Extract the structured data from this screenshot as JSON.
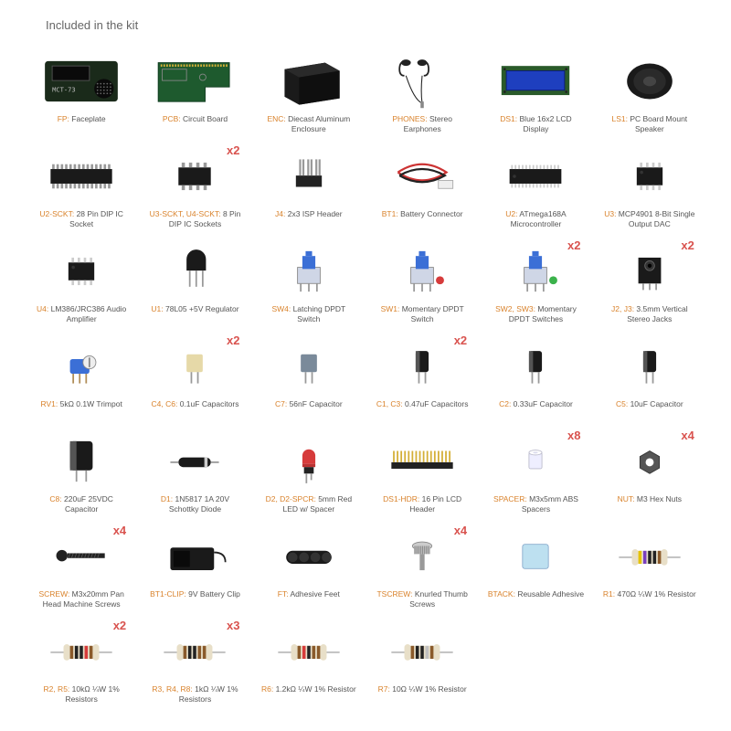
{
  "title": "Included in the kit",
  "colors": {
    "ref": "#d9822b",
    "qty": "#d9534f",
    "bg": "#ffffff",
    "text": "#555"
  },
  "items": [
    {
      "ref": "FP:",
      "desc": "Faceplate",
      "icon": "faceplate"
    },
    {
      "ref": "PCB:",
      "desc": "Circuit Board",
      "icon": "pcb"
    },
    {
      "ref": "ENC:",
      "desc": "Diecast Aluminum Enclosure",
      "icon": "enclosure"
    },
    {
      "ref": "PHONES:",
      "desc": "Stereo Earphones",
      "icon": "earphones"
    },
    {
      "ref": "DS1:",
      "desc": "Blue 16x2 LCD Display",
      "icon": "lcd"
    },
    {
      "ref": "LS1:",
      "desc": "PC Board Mount Speaker",
      "icon": "speaker"
    },
    {
      "ref": "U2-SCKT:",
      "desc": "28 Pin DIP IC Socket",
      "icon": "dip28"
    },
    {
      "ref": "U3-SCKT, U4-SCKT:",
      "desc": "8 Pin DIP IC Sockets",
      "icon": "dip8",
      "qty": "x2"
    },
    {
      "ref": "J4:",
      "desc": "2x3 ISP Header",
      "icon": "isp"
    },
    {
      "ref": "BT1:",
      "desc": "Battery Connector",
      "icon": "battconn"
    },
    {
      "ref": "U2:",
      "desc": "ATmega168A Microcontroller",
      "icon": "chip28"
    },
    {
      "ref": "U3:",
      "desc": "MCP4901 8-Bit Single Output DAC",
      "icon": "chip8"
    },
    {
      "ref": "U4:",
      "desc": "LM386/JRC386 Audio Amplifier",
      "icon": "chip8"
    },
    {
      "ref": "U1:",
      "desc": "78L05 +5V Regulator",
      "icon": "to92"
    },
    {
      "ref": "SW4:",
      "desc": "Latching DPDT Switch",
      "icon": "switch",
      "accent": "#3b6fd6"
    },
    {
      "ref": "SW1:",
      "desc": "Momentary DPDT Switch",
      "icon": "switch",
      "accent": "#3b6fd6",
      "accent2": "#d63b3b"
    },
    {
      "ref": "SW2, SW3:",
      "desc": "Momentary DPDT Switches",
      "icon": "switch",
      "accent": "#3b6fd6",
      "accent2": "#3bb24b",
      "qty": "x2"
    },
    {
      "ref": "J2, J3:",
      "desc": "3.5mm Vertical Stereo Jacks",
      "icon": "jack",
      "qty": "x2"
    },
    {
      "ref": "RV1:",
      "desc": "5kΩ 0.1W Trimpot",
      "icon": "trimpot"
    },
    {
      "ref": "C4, C6:",
      "desc": "0.1uF Capacitors",
      "icon": "boxcap",
      "accent": "#e6d9a8",
      "qty": "x2"
    },
    {
      "ref": "C7:",
      "desc": "56nF Capacitor",
      "icon": "boxcap",
      "accent": "#7a8a9a"
    },
    {
      "ref": "C1, C3:",
      "desc": "0.47uF Capacitors",
      "icon": "ecap",
      "qty": "x2"
    },
    {
      "ref": "C2:",
      "desc": "0.33uF Capacitor",
      "icon": "ecap"
    },
    {
      "ref": "C5:",
      "desc": "10uF Capacitor",
      "icon": "ecap"
    },
    {
      "ref": "C8:",
      "desc": "220uF 25VDC Capacitor",
      "icon": "ecapbig"
    },
    {
      "ref": "D1:",
      "desc": "1N5817 1A 20V Schottky Diode",
      "icon": "diode"
    },
    {
      "ref": "D2, D2-SPCR:",
      "desc": "5mm Red LED w/ Spacer",
      "icon": "led"
    },
    {
      "ref": "DS1-HDR:",
      "desc": "16 Pin LCD Header",
      "icon": "header16"
    },
    {
      "ref": "SPACER:",
      "desc": "M3x5mm ABS Spacers",
      "icon": "spacer",
      "qty": "x8"
    },
    {
      "ref": "NUT:",
      "desc": "M3 Hex Nuts",
      "icon": "nut",
      "qty": "x4"
    },
    {
      "ref": "SCREW:",
      "desc": "M3x20mm Pan Head Machine Screws",
      "icon": "screw",
      "qty": "x4"
    },
    {
      "ref": "BT1-CLIP:",
      "desc": "9V Battery Clip",
      "icon": "battclip"
    },
    {
      "ref": "FT:",
      "desc": "Adhesive Feet",
      "icon": "feet"
    },
    {
      "ref": "TSCREW:",
      "desc": "Knurled Thumb Screws",
      "icon": "thumbscrew",
      "qty": "x4"
    },
    {
      "ref": "BTACK:",
      "desc": "Reusable Adhesive",
      "icon": "btack"
    },
    {
      "ref": "R1:",
      "desc": "470Ω ¼W 1% Resistor",
      "icon": "resistor",
      "bands": [
        "#e6c200",
        "#7a3fbf",
        "#222",
        "#222",
        "#8a5a2b"
      ]
    },
    {
      "ref": "R2, R5:",
      "desc": "10kΩ ¼W 1% Resistors",
      "icon": "resistor",
      "bands": [
        "#8a5a2b",
        "#222",
        "#222",
        "#d63b3b",
        "#8a5a2b"
      ],
      "qty": "x2"
    },
    {
      "ref": "R3, R4, R8:",
      "desc": "1kΩ ¼W 1% Resistors",
      "icon": "resistor",
      "bands": [
        "#8a5a2b",
        "#222",
        "#222",
        "#8a5a2b",
        "#8a5a2b"
      ],
      "qty": "x3"
    },
    {
      "ref": "R6:",
      "desc": "1.2kΩ ¼W 1% Resistor",
      "icon": "resistor",
      "bands": [
        "#8a5a2b",
        "#d63b3b",
        "#222",
        "#8a5a2b",
        "#8a5a2b"
      ]
    },
    {
      "ref": "R7:",
      "desc": "10Ω ¼W 1% Resistor",
      "icon": "resistor",
      "bands": [
        "#8a5a2b",
        "#222",
        "#222",
        "#c0c0c0",
        "#8a5a2b"
      ]
    }
  ]
}
